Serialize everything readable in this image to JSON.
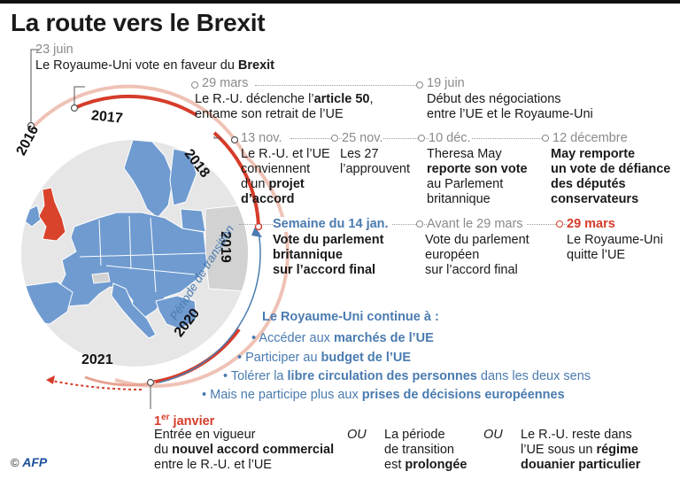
{
  "title": "La route vers le Brexit",
  "years": [
    "2016",
    "2017",
    "2018",
    "2019",
    "2020",
    "2021"
  ],
  "e2016": {
    "date": "23 juin",
    "pre": "Le Royaume-Uni vote en faveur du ",
    "key": "Brexit"
  },
  "e2017a": {
    "date": "29 mars",
    "l1_pre": "Le R.-U. déclenche l’",
    "l1_key": "article 50",
    "l1_post": ",",
    "l2": "entame son retrait de l’UE"
  },
  "e2017b": {
    "date": "19 juin",
    "l1": "Début des négociations",
    "l2": "entre l’UE et le Royaume-Uni"
  },
  "e2018a": {
    "date": "13 nov.",
    "l1": "Le R.-U. et l’UE",
    "l2": "conviennent",
    "l3_pre": "d’un ",
    "l3_key": "projet",
    "l4_key": "d’accord"
  },
  "e2018b": {
    "date": "25 nov.",
    "l1": "Les 27",
    "l2": "l’approuvent"
  },
  "e2018c": {
    "date": "10 déc.",
    "l1": "Theresa May",
    "l2_key": "reporte son vote",
    "l3": "au Parlement",
    "l4": "britannique"
  },
  "e2018d": {
    "date": "12 décembre",
    "l1": "May remporte",
    "l2": "un vote de défiance",
    "l3": "des députés",
    "l4": "conservateurs"
  },
  "e2019a": {
    "date": "Semaine du 14 jan.",
    "l1": "Vote du parlement",
    "l2": "britannique",
    "l3": "sur l’accord final"
  },
  "e2019b": {
    "date": "Avant le 29 mars",
    "l1": "Vote du parlement",
    "l2": "européen",
    "l3": "sur l’accord final"
  },
  "e2019c": {
    "date": "29 mars",
    "l1": "Le Royaume-Uni",
    "l2": "quitte l’UE"
  },
  "transition": {
    "label": "Période de transition",
    "heading": "Le Royaume-Uni continue à :",
    "items": [
      {
        "pre": "Accéder aux ",
        "key": "marchés de l’UE",
        "post": ""
      },
      {
        "pre": "Participer au ",
        "key": "budget de l’UE",
        "post": ""
      },
      {
        "pre": "Tolérer la ",
        "key": "libre circulation des personnes",
        "post": " dans les deux sens"
      },
      {
        "pre": "Mais ne participe plus aux ",
        "key": "prises de décisions européennes",
        "post": ""
      }
    ]
  },
  "e2021": {
    "date_main": "1",
    "date_sup": "er",
    "date_rest": " janvier",
    "opt1": {
      "l1": "Entrée en vigueur",
      "l2_pre": "du ",
      "l2_key": "nouvel accord commercial",
      "l3": "entre le R.-U. et l’UE"
    },
    "or1": "OU",
    "opt2": {
      "l1": "La période",
      "l2": "de transition",
      "l3_pre": "est ",
      "l3_key": "prolongée"
    },
    "or2": "OU",
    "opt3": {
      "l1": "Le R.-U. reste dans",
      "l2_pre": "l’UE sous un ",
      "l2_key": "régime",
      "l3_key": "douanier particulier"
    }
  },
  "credit": {
    "pre": "© ",
    "logo": "AFP"
  },
  "colors": {
    "accent_red": "#d63c2a",
    "arc_light": "#efc2b6",
    "map_blue": "#6f9bd0",
    "uk_red": "#d9432c",
    "transition_blue": "#4a7bb0",
    "date_grey": "#8a8a8a"
  }
}
